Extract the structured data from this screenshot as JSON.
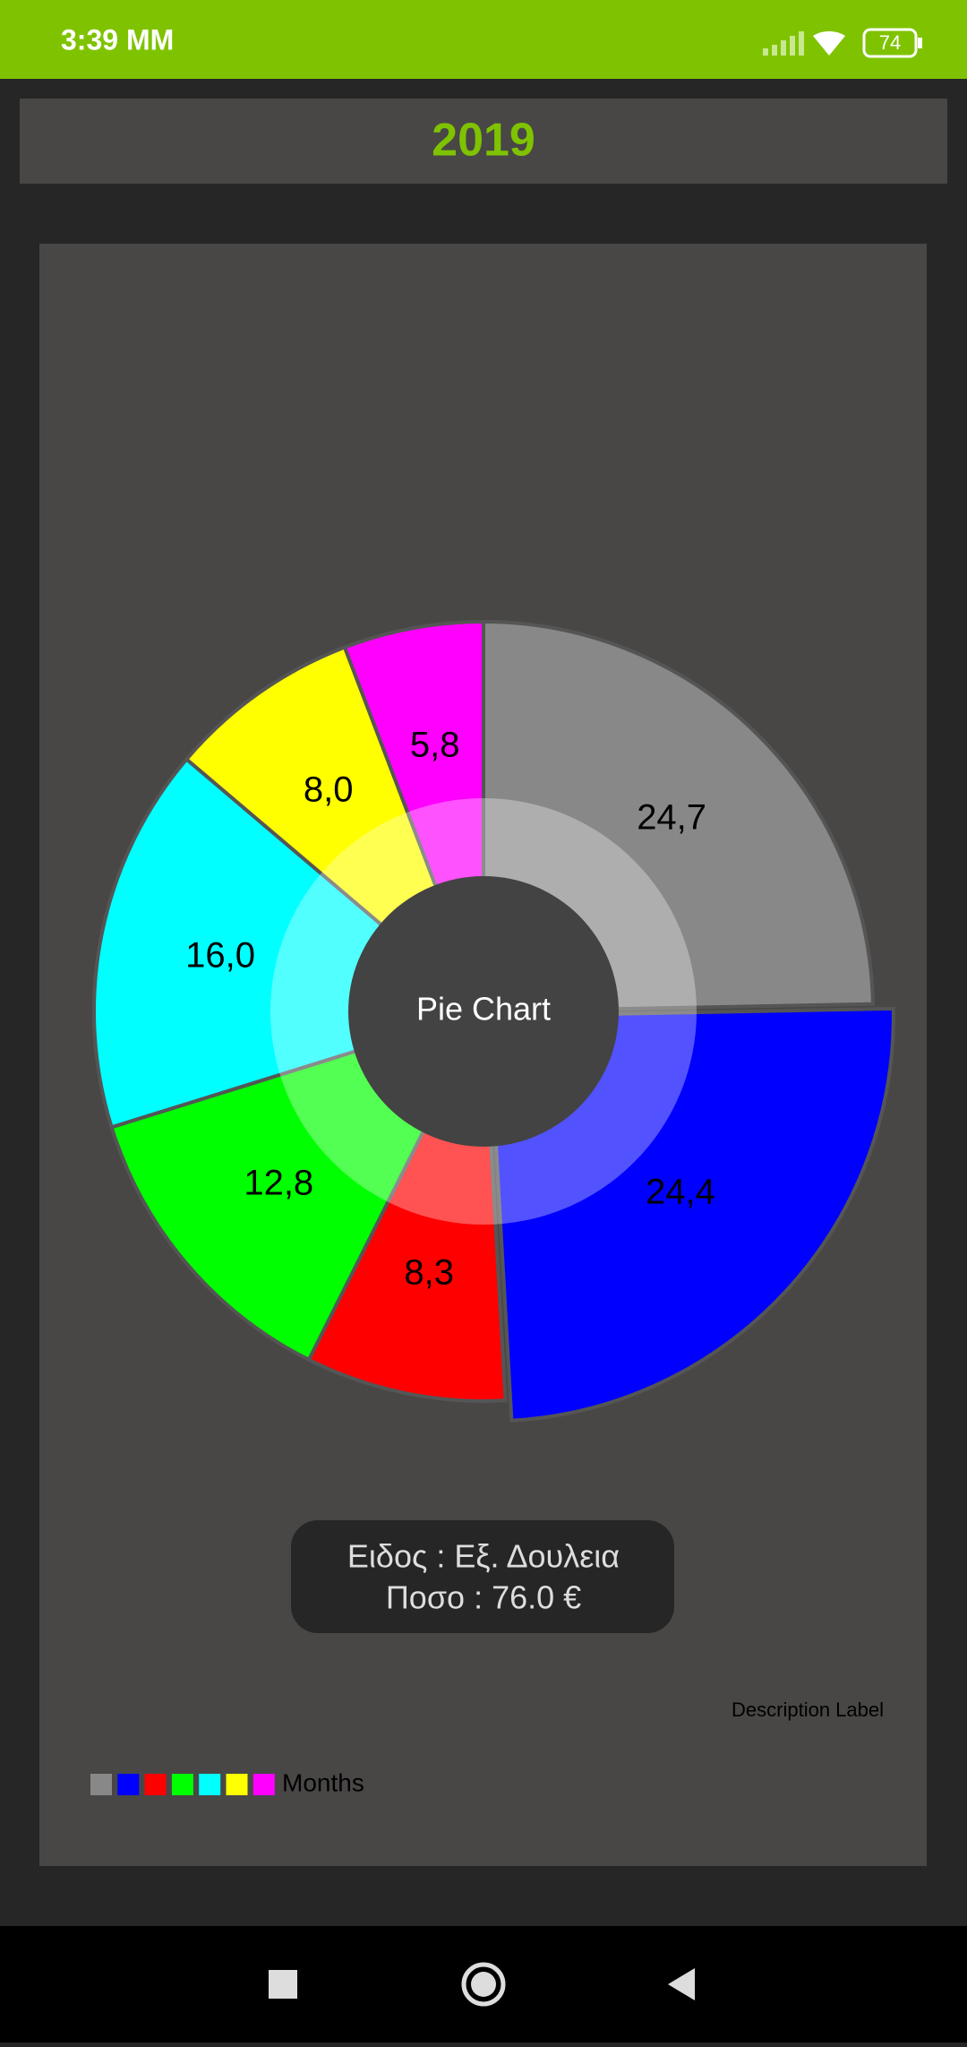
{
  "status_bar": {
    "time": "3:39 MM",
    "battery": "74"
  },
  "header": {
    "title": "2019"
  },
  "chart_data": {
    "type": "pie",
    "center_text": "Pie Chart",
    "values": [
      24.7,
      24.4,
      8.3,
      12.8,
      16.0,
      8.0,
      5.8
    ],
    "value_labels": [
      "24,7",
      "24,4",
      "8,3",
      "12,8",
      "16,0",
      "8,0",
      "5,8"
    ],
    "colors": [
      "#888888",
      "#0000ff",
      "#ff0000",
      "#00ff00",
      "#00ffff",
      "#ffff00",
      "#ff00ff"
    ],
    "selected": 1,
    "legend_label": "Months",
    "description": "Description Label"
  },
  "toast": {
    "lines": [
      "Ειδος : Εξ. Δουλεια",
      "Ποσο : 76.0 €"
    ]
  }
}
